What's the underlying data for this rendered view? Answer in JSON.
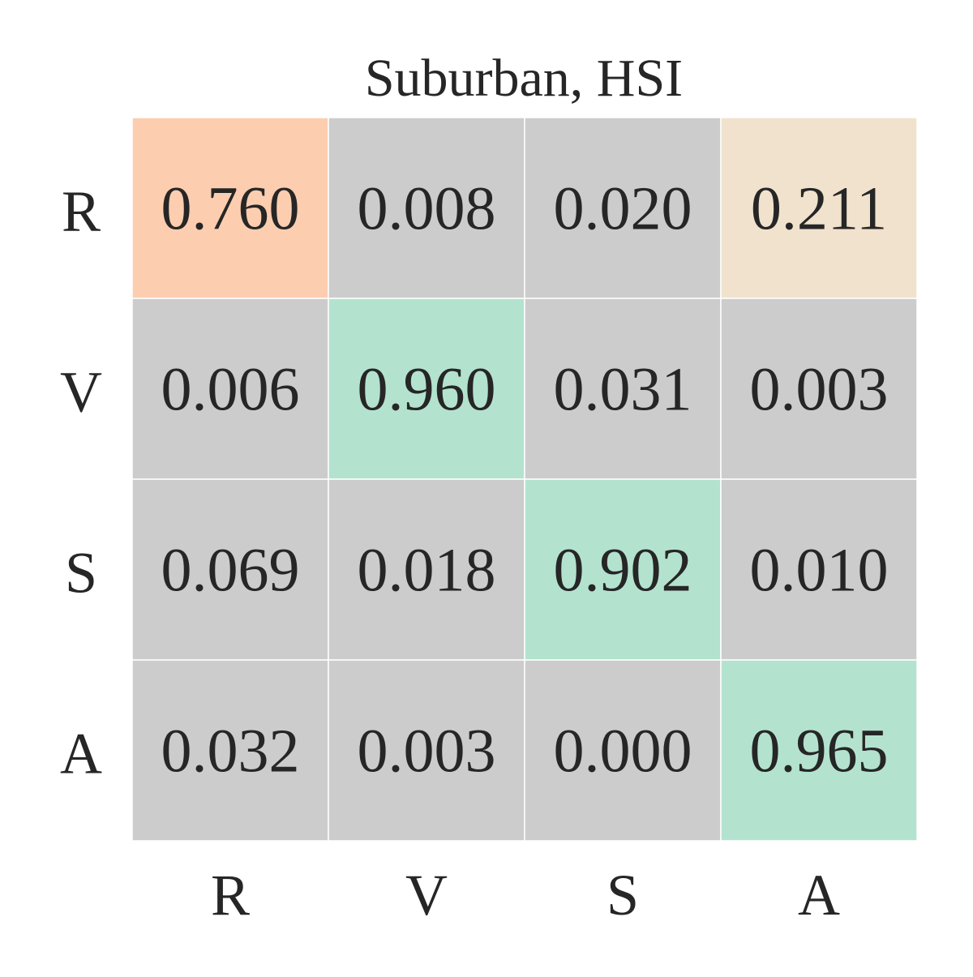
{
  "chart_data": {
    "type": "heatmap",
    "title": "Suburban, HSI",
    "xlabel": "",
    "ylabel": "",
    "x_categories": [
      "R",
      "V",
      "S",
      "A"
    ],
    "y_categories": [
      "R",
      "V",
      "S",
      "A"
    ],
    "values": [
      [
        0.76,
        0.008,
        0.02,
        0.211
      ],
      [
        0.006,
        0.96,
        0.031,
        0.003
      ],
      [
        0.069,
        0.018,
        0.902,
        0.01
      ],
      [
        0.032,
        0.003,
        0.0,
        0.965
      ]
    ],
    "value_labels": [
      [
        "0.760",
        "0.008",
        "0.020",
        "0.211"
      ],
      [
        "0.006",
        "0.960",
        "0.031",
        "0.003"
      ],
      [
        "0.069",
        "0.018",
        "0.902",
        "0.010"
      ],
      [
        "0.032",
        "0.003",
        "0.000",
        "0.965"
      ]
    ],
    "colors": {
      "diagonal": "#b3e3cf",
      "off_diagonal_low": "#cccccc",
      "first_row_high": "#fdcdb0",
      "first_row_mid": "#f1e2cd",
      "grid_line": "#ffffff",
      "text": "#262626"
    },
    "legend": "none",
    "grid": false
  }
}
